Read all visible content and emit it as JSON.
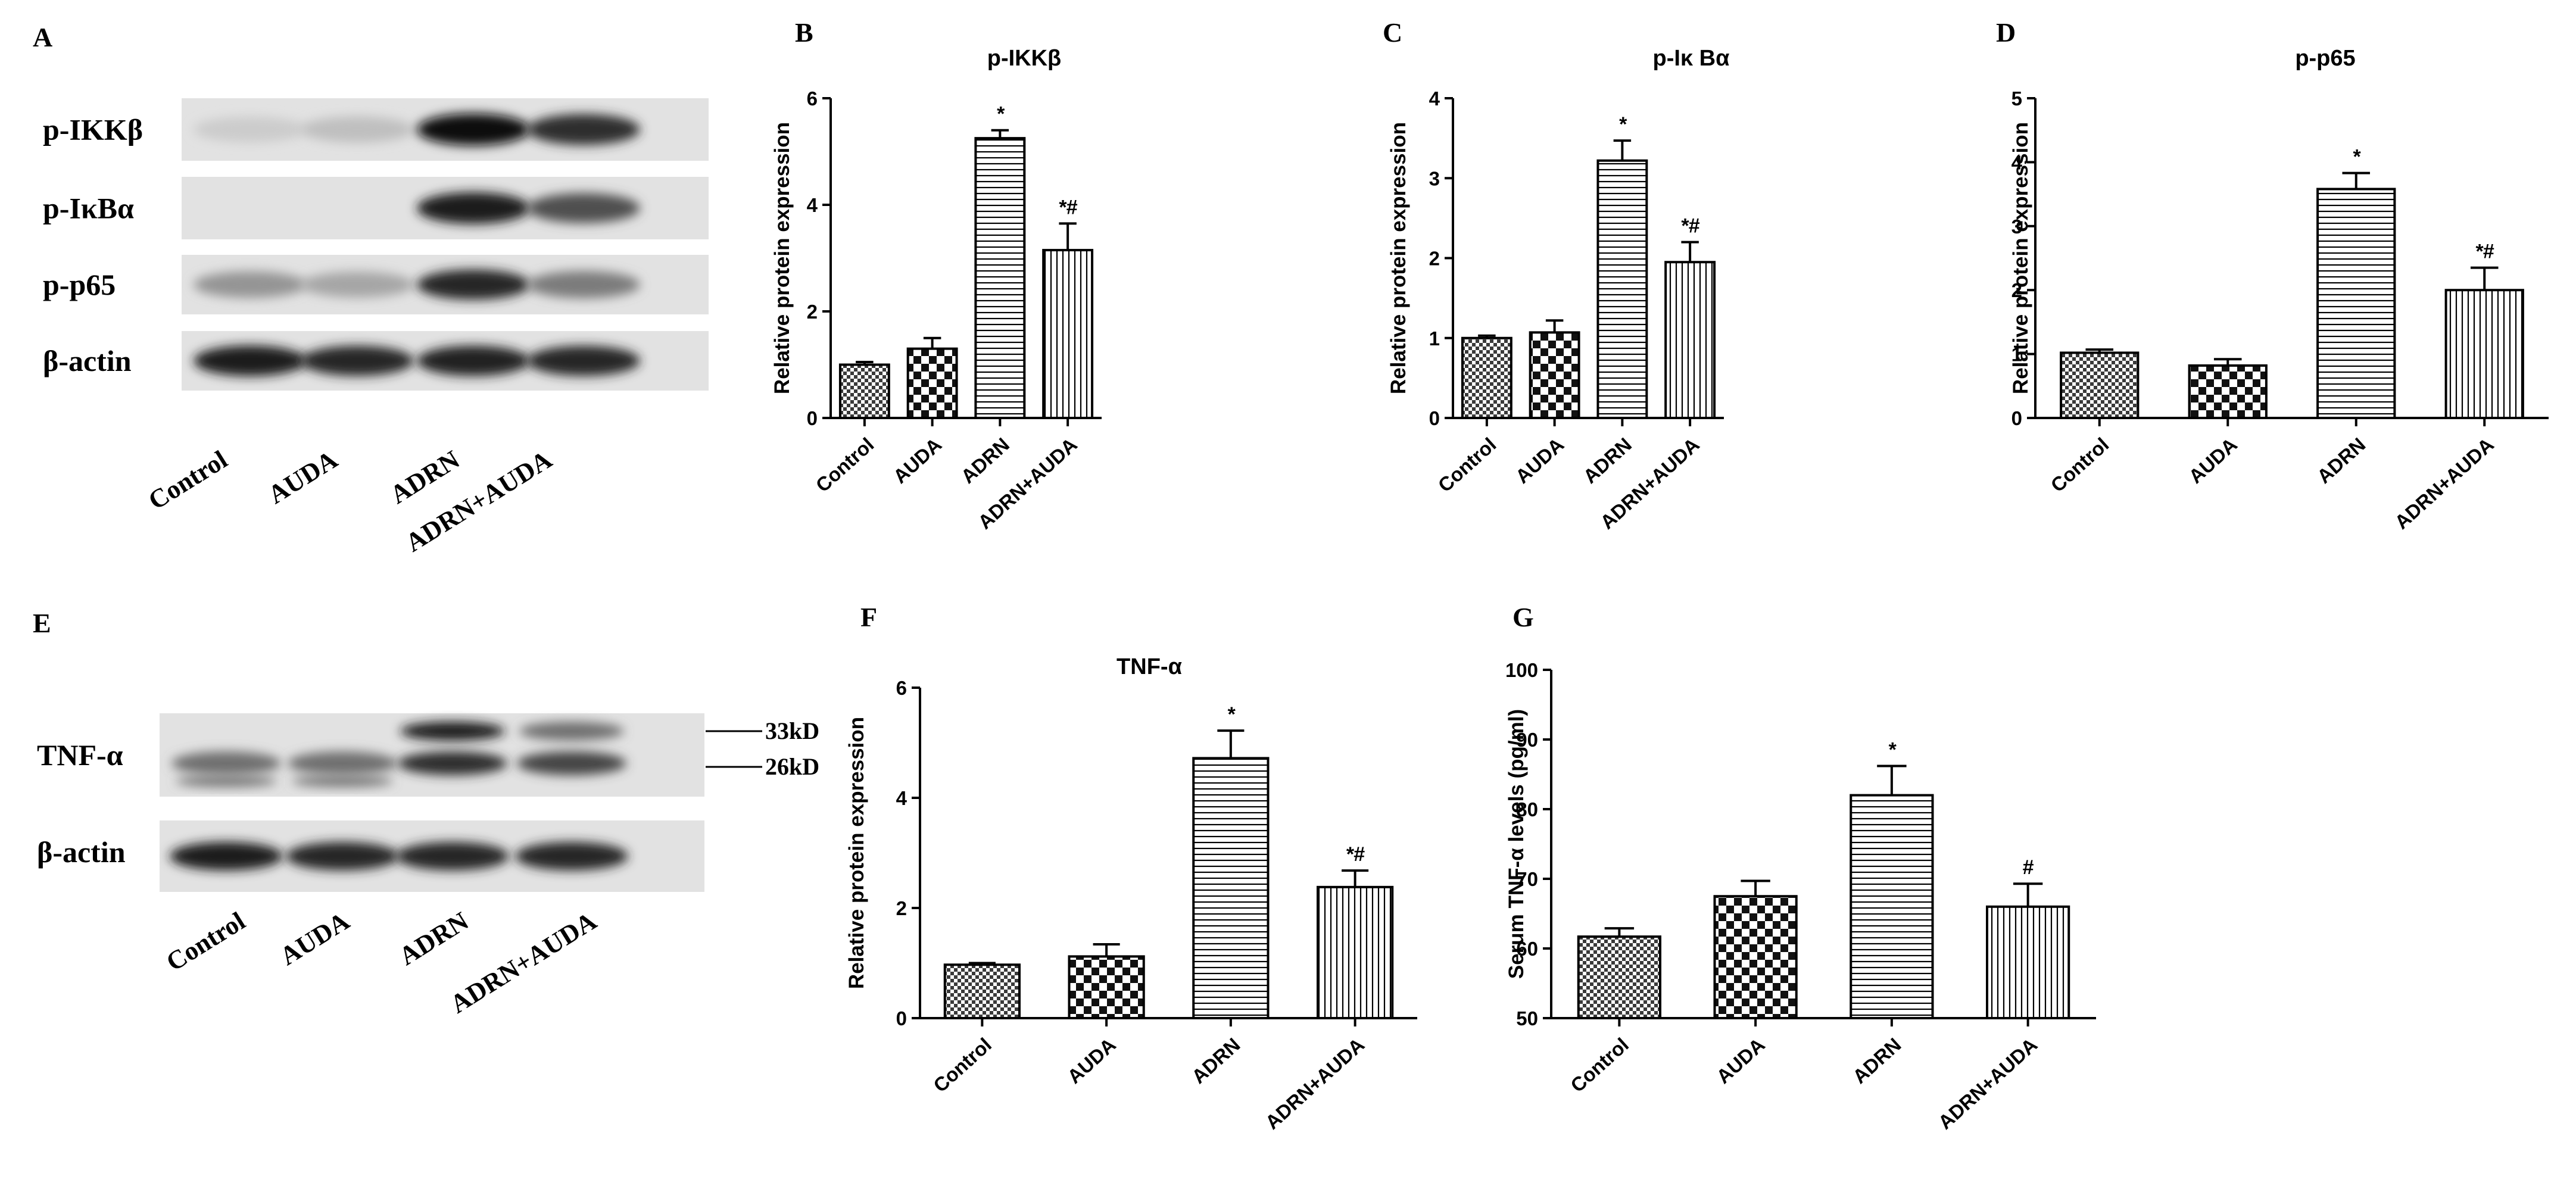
{
  "blots": {
    "A": {
      "label": "A",
      "rows": [
        "p-IKKβ",
        "p-IκBα",
        "p-p65",
        "β-actin"
      ],
      "lanes": [
        "Control",
        "AUDA",
        "ADRN",
        "ADRN+AUDA"
      ],
      "band_intensity": [
        [
          0.12,
          0.18,
          1.0,
          0.85
        ],
        [
          0.0,
          0.0,
          0.95,
          0.7
        ],
        [
          0.38,
          0.3,
          0.9,
          0.5
        ],
        [
          0.95,
          0.9,
          0.92,
          0.9
        ]
      ]
    },
    "E": {
      "label": "E",
      "rows": [
        "TNF-α",
        "β-actin"
      ],
      "markers": [
        "33kD",
        "26kD"
      ],
      "lanes": [
        "Control",
        "AUDA",
        "ADRN",
        "ADRN+AUDA"
      ],
      "band_upper": [
        0.0,
        0.0,
        0.95,
        0.55
      ],
      "band_lower": [
        0.55,
        0.55,
        0.85,
        0.75
      ],
      "band_actin": [
        0.95,
        0.9,
        0.9,
        0.9
      ]
    }
  },
  "chart_data": [
    {
      "panel": "B",
      "type": "bar",
      "title": "p-IKKβ",
      "categories": [
        "Control",
        "AUDA",
        "ADRN",
        "ADRN+AUDA"
      ],
      "values": [
        1.0,
        1.3,
        5.25,
        3.15
      ],
      "errors": [
        0.05,
        0.2,
        0.15,
        0.5
      ],
      "significance": [
        "",
        "",
        "*",
        "*#"
      ],
      "ylabel": "Relative protein expression",
      "ylim": [
        0,
        6
      ],
      "yticks": [
        0,
        2,
        4,
        6
      ]
    },
    {
      "panel": "C",
      "type": "bar",
      "title": "p-Iκ Bα",
      "categories": [
        "Control",
        "AUDA",
        "ADRN",
        "ADRN+AUDA"
      ],
      "values": [
        1.0,
        1.07,
        3.22,
        1.95
      ],
      "errors": [
        0.03,
        0.15,
        0.25,
        0.25
      ],
      "significance": [
        "",
        "",
        "*",
        "*#"
      ],
      "ylabel": "Relative protein expression",
      "ylim": [
        0,
        4
      ],
      "yticks": [
        0,
        1,
        2,
        3,
        4
      ]
    },
    {
      "panel": "D",
      "type": "bar",
      "title": "p-p65",
      "categories": [
        "Control",
        "AUDA",
        "ADRN",
        "ADRN+AUDA"
      ],
      "values": [
        1.02,
        0.82,
        3.58,
        2.0
      ],
      "errors": [
        0.05,
        0.1,
        0.25,
        0.35
      ],
      "significance": [
        "",
        "",
        "*",
        "*#"
      ],
      "ylabel": "Relative protein expression",
      "ylim": [
        0,
        5
      ],
      "yticks": [
        0,
        1,
        2,
        3,
        4,
        5
      ]
    },
    {
      "panel": "F",
      "type": "bar",
      "title": "TNF-α",
      "categories": [
        "Control",
        "AUDA",
        "ADRN",
        "ADRN+AUDA"
      ],
      "values": [
        0.97,
        1.12,
        4.72,
        2.38
      ],
      "errors": [
        0.03,
        0.22,
        0.5,
        0.3
      ],
      "significance": [
        "",
        "",
        "*",
        "*#"
      ],
      "ylabel": "Relative protein expression",
      "ylim": [
        0,
        6
      ],
      "yticks": [
        0,
        2,
        4,
        6
      ]
    },
    {
      "panel": "G",
      "type": "bar",
      "title": "",
      "categories": [
        "Control",
        "AUDA",
        "ADRN",
        "ADRN+AUDA"
      ],
      "values": [
        61.7,
        67.5,
        82.0,
        66.0
      ],
      "errors": [
        1.2,
        2.2,
        4.2,
        3.3
      ],
      "significance": [
        "",
        "",
        "*",
        "#"
      ],
      "ylabel": "Serum TNF-α  levels (pg/ml)",
      "ylim": [
        50,
        100
      ],
      "yticks": [
        50,
        60,
        70,
        80,
        90,
        100
      ]
    }
  ]
}
